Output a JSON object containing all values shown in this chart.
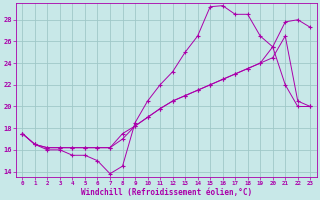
{
  "background_color": "#c8e8e8",
  "line_color": "#aa00aa",
  "grid_color": "#a0c8c8",
  "xlabel": "Windchill (Refroidissement éolien,°C)",
  "xlabel_color": "#aa00aa",
  "tick_color": "#aa00aa",
  "xlim": [
    -0.5,
    23.5
  ],
  "ylim": [
    13.5,
    29.5
  ],
  "yticks": [
    14,
    16,
    18,
    20,
    22,
    24,
    26,
    28
  ],
  "xticks": [
    0,
    1,
    2,
    3,
    4,
    5,
    6,
    7,
    8,
    9,
    10,
    11,
    12,
    13,
    14,
    15,
    16,
    17,
    18,
    19,
    20,
    21,
    22,
    23
  ],
  "line1_x": [
    0,
    1,
    2,
    3,
    4,
    5,
    6,
    7,
    8,
    9,
    10,
    11,
    12,
    13,
    14,
    15,
    16,
    17,
    18,
    19,
    20,
    21,
    22,
    23
  ],
  "line1_y": [
    17.5,
    16.5,
    16.0,
    16.0,
    15.5,
    15.5,
    15.0,
    13.8,
    14.5,
    18.5,
    20.5,
    22.0,
    23.2,
    25.0,
    26.5,
    29.2,
    29.3,
    28.5,
    28.5,
    26.5,
    25.5,
    22.0,
    20.0,
    20.0
  ],
  "line2_x": [
    0,
    1,
    2,
    3,
    4,
    5,
    6,
    7,
    8,
    9,
    10,
    11,
    12,
    13,
    14,
    15,
    16,
    17,
    18,
    19,
    20,
    21,
    22,
    23
  ],
  "line2_y": [
    17.5,
    16.5,
    16.2,
    16.2,
    16.2,
    16.2,
    16.2,
    16.2,
    17.5,
    18.2,
    19.0,
    19.8,
    20.5,
    21.0,
    21.5,
    22.0,
    22.5,
    23.0,
    23.5,
    24.0,
    25.5,
    27.8,
    28.0,
    27.3
  ],
  "line3_x": [
    0,
    1,
    2,
    3,
    4,
    5,
    6,
    7,
    8,
    9,
    10,
    11,
    12,
    13,
    14,
    15,
    16,
    17,
    18,
    19,
    20,
    21,
    22,
    23
  ],
  "line3_y": [
    17.5,
    16.5,
    16.2,
    16.2,
    16.2,
    16.2,
    16.2,
    16.2,
    17.0,
    18.2,
    19.0,
    19.8,
    20.5,
    21.0,
    21.5,
    22.0,
    22.5,
    23.0,
    23.5,
    24.0,
    24.5,
    26.5,
    20.5,
    20.0
  ],
  "ylabel_ticks": [
    "14",
    "16",
    "18",
    "20",
    "22",
    "24",
    "26",
    "28"
  ]
}
